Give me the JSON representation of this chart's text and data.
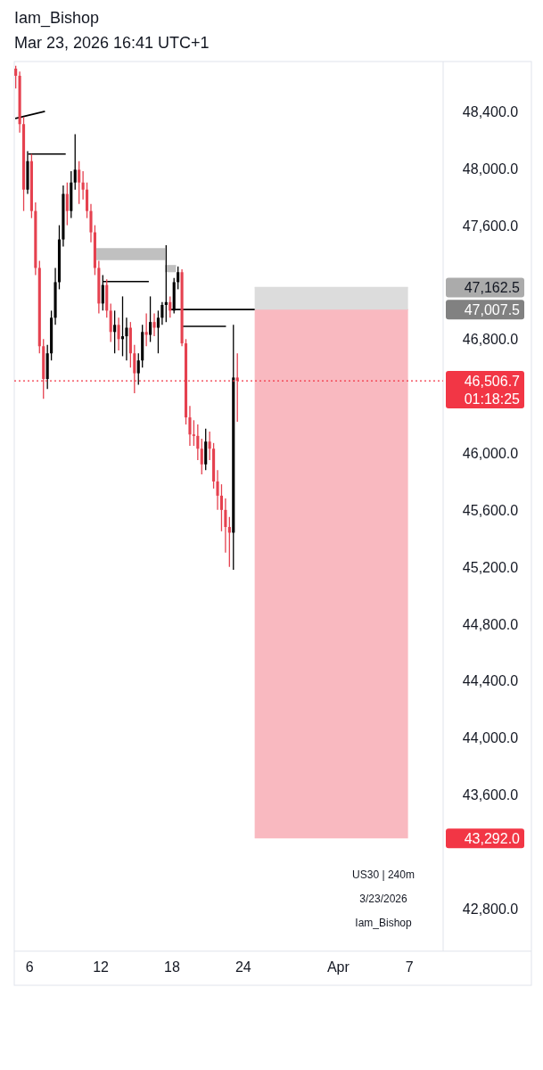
{
  "chart_data": {
    "type": "candlestick",
    "title": "Iam_Bishop",
    "subtitle": "Mar 23, 2026 16:41 UTC+1",
    "x": [
      "2026-03-04T20:00",
      "2026-03-05T04:00",
      "2026-03-05T12:00",
      "2026-03-05T20:00",
      "2026-03-06T04:00",
      "2026-03-06T12:00",
      "2026-03-06T20:00",
      "2026-03-07T04:00",
      "2026-03-07T12:00",
      "2026-03-07T20:00",
      "2026-03-08T04:00",
      "2026-03-08T12:00",
      "2026-03-08T20:00",
      "2026-03-09T04:00",
      "2026-03-09T12:00",
      "2026-03-09T20:00",
      "2026-03-10T04:00",
      "2026-03-10T12:00",
      "2026-03-10T20:00",
      "2026-03-11T04:00",
      "2026-03-11T12:00",
      "2026-03-11T20:00",
      "2026-03-12T04:00",
      "2026-03-12T12:00",
      "2026-03-12T20:00",
      "2026-03-13T04:00",
      "2026-03-13T12:00",
      "2026-03-13T20:00",
      "2026-03-14T04:00",
      "2026-03-14T12:00",
      "2026-03-14T20:00",
      "2026-03-15T04:00",
      "2026-03-15T12:00",
      "2026-03-15T20:00",
      "2026-03-16T04:00",
      "2026-03-16T12:00",
      "2026-03-16T20:00",
      "2026-03-17T04:00",
      "2026-03-17T12:00",
      "2026-03-17T20:00",
      "2026-03-18T04:00",
      "2026-03-18T12:00",
      "2026-03-18T20:00",
      "2026-03-19T04:00",
      "2026-03-19T12:00",
      "2026-03-19T20:00",
      "2026-03-20T04:00",
      "2026-03-20T12:00",
      "2026-03-20T20:00",
      "2026-03-21T04:00",
      "2026-03-21T12:00",
      "2026-03-21T20:00",
      "2026-03-22T04:00",
      "2026-03-22T12:00",
      "2026-03-22T20:00",
      "2026-03-23T04:00",
      "2026-03-23T12:00"
    ],
    "ohlc": [
      [
        48700,
        48720,
        48560,
        48650
      ],
      [
        48650,
        48680,
        48250,
        48310
      ],
      [
        48310,
        48360,
        47700,
        47850
      ],
      [
        47850,
        48120,
        47820,
        48050
      ],
      [
        48050,
        48100,
        47650,
        47700
      ],
      [
        47700,
        47760,
        47250,
        47300
      ],
      [
        47300,
        47350,
        46700,
        46750
      ],
      [
        46750,
        46800,
        46380,
        46520
      ],
      [
        46520,
        46760,
        46450,
        46700
      ],
      [
        46700,
        47000,
        46650,
        46950
      ],
      [
        46950,
        47300,
        46900,
        47200
      ],
      [
        47200,
        47600,
        47150,
        47500
      ],
      [
        47500,
        47880,
        47450,
        47820
      ],
      [
        47820,
        47900,
        47600,
        47700
      ],
      [
        47700,
        47980,
        47650,
        47900
      ],
      [
        47900,
        48240,
        47850,
        47990
      ],
      [
        47990,
        48050,
        47750,
        47900
      ],
      [
        47900,
        47980,
        47780,
        47850
      ],
      [
        47850,
        47900,
        47650,
        47700
      ],
      [
        47700,
        47750,
        47480,
        47550
      ],
      [
        47550,
        47600,
        47250,
        47300
      ],
      [
        47300,
        47350,
        46980,
        47050
      ],
      [
        47050,
        47250,
        47000,
        47180
      ],
      [
        47180,
        47220,
        46950,
        47000
      ],
      [
        47000,
        47050,
        46780,
        46850
      ],
      [
        46850,
        47000,
        46700,
        46900
      ],
      [
        46900,
        46950,
        46720,
        46800
      ],
      [
        46800,
        47100,
        46680,
        46820
      ],
      [
        46820,
        46950,
        46650,
        46880
      ],
      [
        46880,
        46920,
        46600,
        46700
      ],
      [
        46700,
        46760,
        46420,
        46560
      ],
      [
        46560,
        46700,
        46480,
        46650
      ],
      [
        46650,
        46900,
        46600,
        46850
      ],
      [
        46850,
        46980,
        46750,
        46830
      ],
      [
        46830,
        47100,
        46780,
        46920
      ],
      [
        46920,
        46980,
        46820,
        46880
      ],
      [
        46880,
        47000,
        46700,
        46950
      ],
      [
        46950,
        47060,
        46900,
        47040
      ],
      [
        47040,
        47460,
        46920,
        47060
      ],
      [
        47060,
        47100,
        46950,
        47000
      ],
      [
        47000,
        47230,
        46980,
        47200
      ],
      [
        47200,
        47310,
        47150,
        47270
      ],
      [
        47270,
        47290,
        46750,
        46770
      ],
      [
        46770,
        46800,
        46200,
        46250
      ],
      [
        46250,
        46330,
        46050,
        46130
      ],
      [
        46130,
        46230,
        46050,
        46120
      ],
      [
        46120,
        46200,
        45950,
        46030
      ],
      [
        46030,
        46100,
        45850,
        45920
      ],
      [
        45920,
        46170,
        45880,
        46080
      ],
      [
        46080,
        46150,
        45950,
        46030
      ],
      [
        46030,
        46070,
        45750,
        45800
      ],
      [
        45800,
        45880,
        45600,
        45700
      ],
      [
        45700,
        45780,
        45450,
        45600
      ],
      [
        45600,
        45680,
        45300,
        45480
      ],
      [
        45480,
        45550,
        45200,
        45440
      ],
      [
        45440,
        46900,
        45180,
        46530
      ],
      [
        46530,
        46700,
        46220,
        46506.7
      ]
    ],
    "colors": [
      "#e5414f",
      "#e5414f",
      "#e5414f",
      "#000000",
      "#e5414f",
      "#e5414f",
      "#e5414f",
      "#e5414f",
      "#000000",
      "#000000",
      "#000000",
      "#000000",
      "#000000",
      "#e5414f",
      "#000000",
      "#000000",
      "#e5414f",
      "#e5414f",
      "#e5414f",
      "#e5414f",
      "#e5414f",
      "#e5414f",
      "#000000",
      "#e5414f",
      "#e5414f",
      "#000000",
      "#e5414f",
      "#000000",
      "#000000",
      "#e5414f",
      "#e5414f",
      "#000000",
      "#000000",
      "#e5414f",
      "#000000",
      "#e5414f",
      "#000000",
      "#000000",
      "#000000",
      "#e5414f",
      "#000000",
      "#000000",
      "#e5414f",
      "#e5414f",
      "#e5414f",
      "#e5414f",
      "#e5414f",
      "#e5414f",
      "#000000",
      "#e5414f",
      "#e5414f",
      "#e5414f",
      "#e5414f",
      "#e5414f",
      "#e5414f",
      "#000000",
      "#e5414f"
    ],
    "xlim": [
      "2026-03-04T17:00",
      "2026-04-09T20:00"
    ],
    "ylim": [
      42500,
      48750
    ],
    "xticks": [
      {
        "value": "2026-03-06",
        "label": "6"
      },
      {
        "value": "2026-03-12",
        "label": "12"
      },
      {
        "value": "2026-03-18",
        "label": "18"
      },
      {
        "value": "2026-03-24",
        "label": "24"
      },
      {
        "value": "2026-04-01",
        "label": "Apr"
      },
      {
        "value": "2026-04-07",
        "label": "7"
      }
    ],
    "yticks": [
      {
        "value": 42800,
        "label": "42,800.0"
      },
      {
        "value": 43292,
        "label": "43,292.0"
      },
      {
        "value": 43600,
        "label": "43,600.0"
      },
      {
        "value": 44000,
        "label": "44,000.0"
      },
      {
        "value": 44400,
        "label": "44,400.0"
      },
      {
        "value": 44800,
        "label": "44,800.0"
      },
      {
        "value": 45200,
        "label": "45,200.0"
      },
      {
        "value": 45600,
        "label": "45,600.0"
      },
      {
        "value": 46000,
        "label": "46,000.0"
      },
      {
        "value": 46800,
        "label": "46,800.0"
      },
      {
        "value": 47007.5,
        "label": "47,007.5"
      },
      {
        "value": 47162.5,
        "label": "47,162.5"
      },
      {
        "value": 47600,
        "label": "47,600.0"
      },
      {
        "value": 48000,
        "label": "48,000.0"
      },
      {
        "value": 48400,
        "label": "48,400.0"
      }
    ],
    "series": [
      {
        "type": "line",
        "x": [
          "2026-03-24T23:00",
          "2026-04-06T21:00"
        ],
        "values": [
          47007.5,
          47007.5
        ],
        "lower": [
          43292,
          43292
        ],
        "upper": [
          47007.5,
          47007.5
        ],
        "color": "#f9b9c0"
      },
      {
        "type": "line",
        "x": [
          "2026-03-24T23:00",
          "2026-04-06T21:00"
        ],
        "values": [
          47162.5,
          47162.5
        ],
        "lower": [
          47007.5,
          47007.5
        ],
        "upper": [
          47162.5,
          47162.5
        ],
        "color": "#dcdcdc"
      },
      {
        "type": "line",
        "x": [
          "2026-03-11T15:00",
          "2026-03-17T10:00"
        ],
        "values": [
          47435,
          47435
        ],
        "lower": [
          47355,
          47355
        ],
        "upper": [
          47435,
          47435
        ],
        "color": "#c0c0c0"
      },
      {
        "type": "line",
        "x": [
          "2026-03-17T10:00",
          "2026-03-18T08:00"
        ],
        "values": [
          47316,
          47316
        ],
        "lower": [
          47270,
          47270
        ],
        "upper": [
          47316,
          47316
        ],
        "color": "#c0c0c0"
      },
      {
        "type": "line",
        "x": [
          "2026-03-04T19:00",
          "2026-03-07T07:00"
        ],
        "values": [
          48350,
          48400
        ],
        "color": "#000000"
      },
      {
        "type": "line",
        "x": [
          "2026-03-05T21:00",
          "2026-03-09T01:00"
        ],
        "values": [
          48100,
          48100
        ],
        "color": "#000000"
      },
      {
        "type": "line",
        "x": [
          "2026-03-12T04:00",
          "2026-03-16T01:00"
        ],
        "values": [
          47204,
          47204
        ],
        "color": "#000000"
      },
      {
        "type": "line",
        "x": [
          "2026-03-17T20:00",
          "2026-03-24T23:00"
        ],
        "values": [
          47007.5,
          47007.5
        ],
        "color": "#000000"
      },
      {
        "type": "line",
        "x": [
          "2026-03-18T19:00",
          "2026-03-22T13:00"
        ],
        "values": [
          46890,
          46890
        ],
        "color": "#000000"
      }
    ],
    "ref_lines": [
      {
        "axis": "y",
        "value": 46506.7,
        "label": "46,506.7\n01:18:25",
        "color": "#f23645",
        "line_style": "dotted"
      }
    ],
    "annotations": [
      "US30 | 240m",
      "3/23/2026",
      "Iam_Bishop"
    ]
  }
}
